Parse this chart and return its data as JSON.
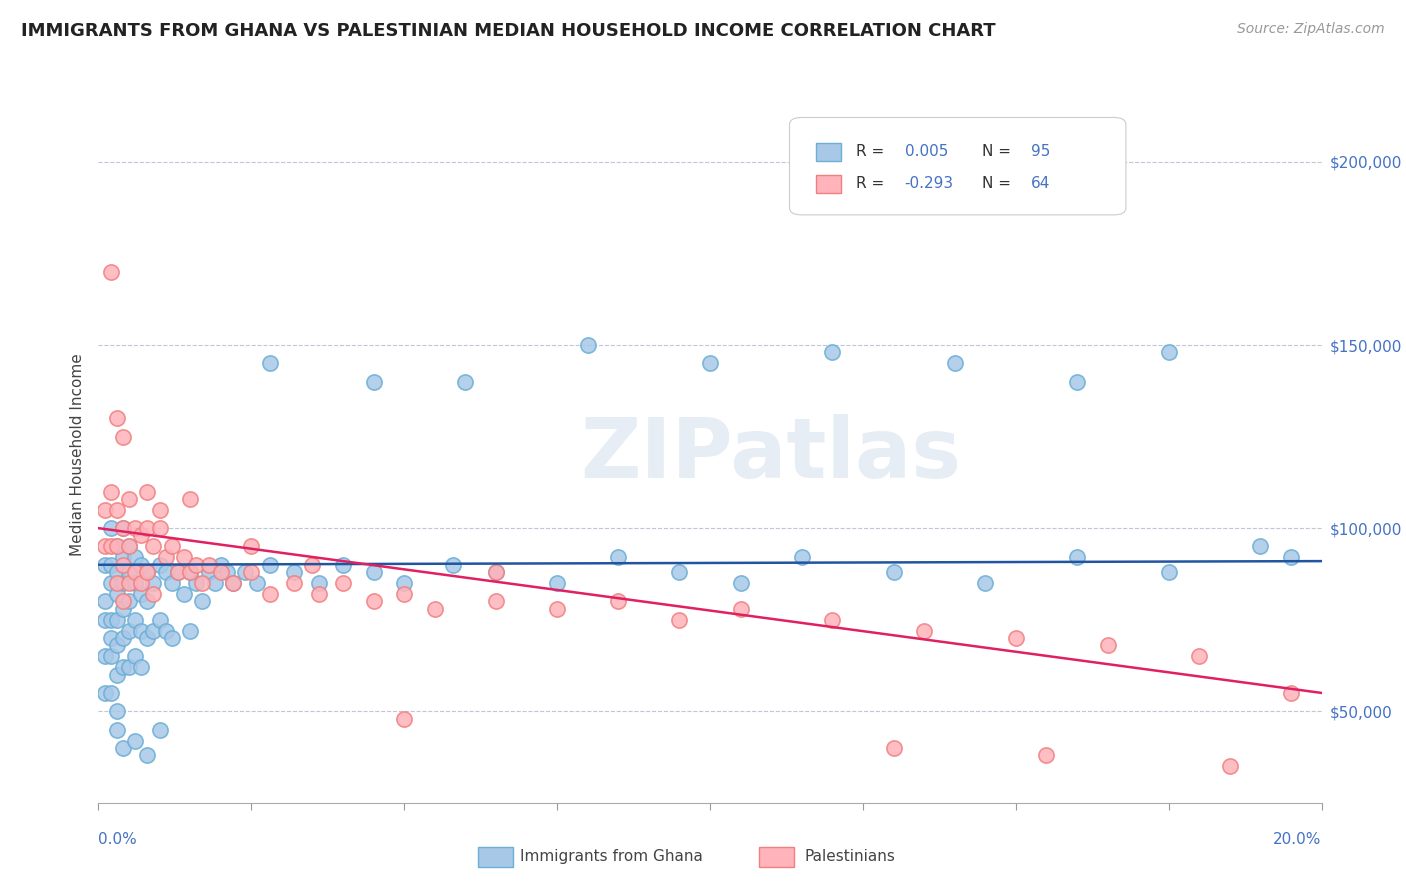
{
  "title": "IMMIGRANTS FROM GHANA VS PALESTINIAN MEDIAN HOUSEHOLD INCOME CORRELATION CHART",
  "source": "Source: ZipAtlas.com",
  "ylabel": "Median Household Income",
  "xlim": [
    0.0,
    0.2
  ],
  "ylim": [
    25000,
    215000
  ],
  "yticks": [
    50000,
    100000,
    150000,
    200000
  ],
  "ytick_labels": [
    "$50,000",
    "$100,000",
    "$150,000",
    "$200,000"
  ],
  "ghana_color": "#a8c8e8",
  "ghana_edge_color": "#6baed6",
  "palestinian_color": "#ffb3ba",
  "palestinian_edge_color": "#f08080",
  "ghana_line_color": "#2255a0",
  "palestinian_line_color": "#e02060",
  "watermark": "ZIPatlas",
  "ghana_x": [
    0.001,
    0.001,
    0.001,
    0.001,
    0.001,
    0.002,
    0.002,
    0.002,
    0.002,
    0.002,
    0.002,
    0.002,
    0.003,
    0.003,
    0.003,
    0.003,
    0.003,
    0.003,
    0.003,
    0.004,
    0.004,
    0.004,
    0.004,
    0.004,
    0.004,
    0.005,
    0.005,
    0.005,
    0.005,
    0.005,
    0.006,
    0.006,
    0.006,
    0.006,
    0.007,
    0.007,
    0.007,
    0.007,
    0.008,
    0.008,
    0.008,
    0.009,
    0.009,
    0.01,
    0.01,
    0.011,
    0.011,
    0.012,
    0.012,
    0.013,
    0.014,
    0.015,
    0.015,
    0.016,
    0.017,
    0.018,
    0.019,
    0.02,
    0.021,
    0.022,
    0.024,
    0.026,
    0.028,
    0.032,
    0.036,
    0.04,
    0.045,
    0.05,
    0.058,
    0.065,
    0.075,
    0.085,
    0.095,
    0.105,
    0.115,
    0.13,
    0.145,
    0.16,
    0.175,
    0.19,
    0.045,
    0.028,
    0.06,
    0.08,
    0.1,
    0.12,
    0.14,
    0.16,
    0.175,
    0.195,
    0.003,
    0.004,
    0.006,
    0.008,
    0.01
  ],
  "ghana_y": [
    90000,
    80000,
    75000,
    65000,
    55000,
    100000,
    90000,
    85000,
    75000,
    70000,
    65000,
    55000,
    95000,
    88000,
    82000,
    75000,
    68000,
    60000,
    50000,
    100000,
    92000,
    85000,
    78000,
    70000,
    62000,
    95000,
    88000,
    80000,
    72000,
    62000,
    92000,
    85000,
    75000,
    65000,
    90000,
    82000,
    72000,
    62000,
    88000,
    80000,
    70000,
    85000,
    72000,
    90000,
    75000,
    88000,
    72000,
    85000,
    70000,
    88000,
    82000,
    88000,
    72000,
    85000,
    80000,
    88000,
    85000,
    90000,
    88000,
    85000,
    88000,
    85000,
    90000,
    88000,
    85000,
    90000,
    88000,
    85000,
    90000,
    88000,
    85000,
    92000,
    88000,
    85000,
    92000,
    88000,
    85000,
    92000,
    88000,
    95000,
    140000,
    145000,
    140000,
    150000,
    145000,
    148000,
    145000,
    140000,
    148000,
    92000,
    45000,
    40000,
    42000,
    38000,
    45000
  ],
  "palestinian_x": [
    0.001,
    0.001,
    0.002,
    0.002,
    0.003,
    0.003,
    0.003,
    0.004,
    0.004,
    0.004,
    0.005,
    0.005,
    0.005,
    0.006,
    0.006,
    0.007,
    0.007,
    0.008,
    0.008,
    0.009,
    0.009,
    0.01,
    0.011,
    0.012,
    0.013,
    0.014,
    0.015,
    0.016,
    0.017,
    0.018,
    0.02,
    0.022,
    0.025,
    0.028,
    0.032,
    0.036,
    0.04,
    0.045,
    0.05,
    0.055,
    0.065,
    0.075,
    0.085,
    0.095,
    0.105,
    0.12,
    0.135,
    0.15,
    0.165,
    0.18,
    0.002,
    0.003,
    0.004,
    0.008,
    0.01,
    0.015,
    0.025,
    0.035,
    0.05,
    0.065,
    0.13,
    0.155,
    0.185,
    0.195
  ],
  "palestinian_y": [
    105000,
    95000,
    110000,
    95000,
    105000,
    95000,
    85000,
    100000,
    90000,
    80000,
    108000,
    95000,
    85000,
    100000,
    88000,
    98000,
    85000,
    100000,
    88000,
    95000,
    82000,
    100000,
    92000,
    95000,
    88000,
    92000,
    88000,
    90000,
    85000,
    90000,
    88000,
    85000,
    88000,
    82000,
    85000,
    82000,
    85000,
    80000,
    82000,
    78000,
    80000,
    78000,
    80000,
    75000,
    78000,
    75000,
    72000,
    70000,
    68000,
    65000,
    170000,
    130000,
    125000,
    110000,
    105000,
    108000,
    95000,
    90000,
    48000,
    88000,
    40000,
    38000,
    35000,
    55000
  ]
}
